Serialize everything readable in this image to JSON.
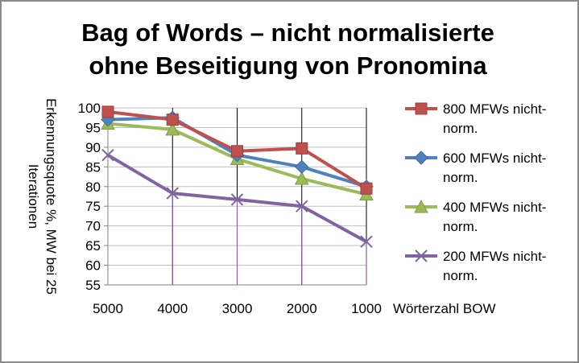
{
  "chart_data": {
    "type": "line",
    "title_lines": [
      "Bag of Words – nicht normalisierte",
      "ohne Beseitigung von Pronomina"
    ],
    "xlabel": "Wörterzahl BOW",
    "ylabel_lines": [
      "Erkennungsquote %, MW bei 25",
      "Iterationen"
    ],
    "categories": [
      "5000",
      "4000",
      "3000",
      "2000",
      "1000"
    ],
    "ylim": [
      55,
      100
    ],
    "yticks": [
      55,
      60,
      65,
      70,
      75,
      80,
      85,
      90,
      95,
      100
    ],
    "legend_position": "right",
    "series": [
      {
        "name": "800 MFWs nicht-norm.",
        "legend_lines": [
          "800 MFWs nicht-",
          "norm."
        ],
        "color": "#c0504d",
        "marker": "square",
        "values": [
          99,
          97,
          89,
          89.7,
          79.5
        ]
      },
      {
        "name": "600 MFWs nicht-norm.",
        "legend_lines": [
          "600 MFWs nicht-",
          "norm."
        ],
        "color": "#4f81bd",
        "marker": "diamond",
        "values": [
          97,
          97.5,
          88,
          85,
          80
        ]
      },
      {
        "name": "400 MFWs nicht-norm.",
        "legend_lines": [
          "400 MFWs nicht-",
          "norm."
        ],
        "color": "#9bbb59",
        "marker": "triangle",
        "values": [
          96,
          94.5,
          87,
          82,
          78
        ]
      },
      {
        "name": "200 MFWs nicht-norm.",
        "legend_lines": [
          "200 MFWs nicht-",
          "norm."
        ],
        "color": "#8064a2",
        "marker": "x",
        "values": [
          88,
          78.3,
          76.7,
          75,
          66
        ]
      }
    ]
  }
}
